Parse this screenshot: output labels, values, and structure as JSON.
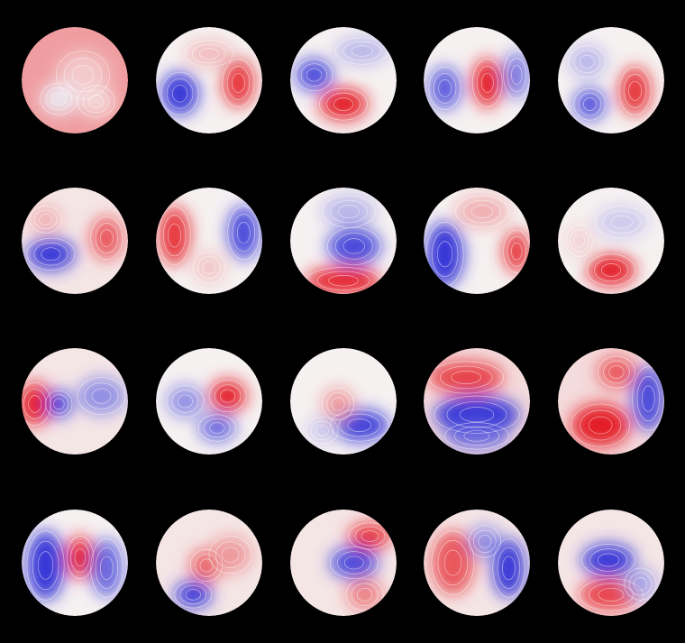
{
  "figure": {
    "background": "#000000",
    "colormap": {
      "negative": "#2a2ad6",
      "neutral": "#f6f1f1",
      "positive": "#e3141b",
      "contour_line": "#ffffff"
    },
    "maps": [
      {
        "blobs": [
          {
            "v": 0.18
          },
          {
            "v": -0.05
          },
          {
            "v": 0.12
          }
        ],
        "base": 0.38
      },
      {
        "blobs": [
          {
            "v": -0.95
          },
          {
            "v": 0.85
          },
          {
            "v": 0.25
          }
        ],
        "base": 0.0
      },
      {
        "blobs": [
          {
            "v": -0.85
          },
          {
            "v": 0.95
          },
          {
            "v": -0.3
          }
        ],
        "base": 0.0
      },
      {
        "blobs": [
          {
            "v": -0.75
          },
          {
            "v": 0.95
          },
          {
            "v": -0.6
          }
        ],
        "base": 0.0
      },
      {
        "blobs": [
          {
            "v": -0.8
          },
          {
            "v": 0.85
          },
          {
            "v": -0.3
          }
        ],
        "base": 0.0
      },
      {
        "blobs": [
          {
            "v": -0.95
          },
          {
            "v": 0.7
          },
          {
            "v": 0.3
          }
        ],
        "base": 0.05
      },
      {
        "blobs": [
          {
            "v": 0.85
          },
          {
            "v": -0.85
          },
          {
            "v": 0.2
          }
        ],
        "base": 0.0
      },
      {
        "blobs": [
          {
            "v": -0.85
          },
          {
            "v": 0.95
          },
          {
            "v": -0.3
          }
        ],
        "base": 0.0
      },
      {
        "blobs": [
          {
            "v": -0.95
          },
          {
            "v": 0.85
          },
          {
            "v": 0.3
          }
        ],
        "base": 0.0
      },
      {
        "blobs": [
          {
            "v": 0.95
          },
          {
            "v": -0.2
          },
          {
            "v": 0.15
          }
        ],
        "base": 0.0
      },
      {
        "blobs": [
          {
            "v": 0.95
          },
          {
            "v": -0.9
          },
          {
            "v": -0.5
          }
        ],
        "base": 0.05
      },
      {
        "blobs": [
          {
            "v": 0.95
          },
          {
            "v": -0.7
          },
          {
            "v": -0.5
          }
        ],
        "base": 0.0
      },
      {
        "blobs": [
          {
            "v": -0.9
          },
          {
            "v": 0.4
          },
          {
            "v": -0.2
          }
        ],
        "base": 0.0
      },
      {
        "blobs": [
          {
            "v": 0.8
          },
          {
            "v": -0.95
          },
          {
            "v": -0.7
          }
        ],
        "base": 0.1
      },
      {
        "blobs": [
          {
            "v": 0.95
          },
          {
            "v": -0.85
          },
          {
            "v": 0.7
          }
        ],
        "base": 0.1
      },
      {
        "blobs": [
          {
            "v": -0.95
          },
          {
            "v": 0.95
          },
          {
            "v": -0.7
          }
        ],
        "base": 0.0
      },
      {
        "blobs": [
          {
            "v": -0.95
          },
          {
            "v": 0.7
          },
          {
            "v": 0.4
          }
        ],
        "base": 0.05
      },
      {
        "blobs": [
          {
            "v": -0.85
          },
          {
            "v": 0.85
          },
          {
            "v": 0.5
          }
        ],
        "base": 0.05
      },
      {
        "blobs": [
          {
            "v": 0.7
          },
          {
            "v": -0.95
          },
          {
            "v": -0.5
          }
        ],
        "base": 0.05
      },
      {
        "blobs": [
          {
            "v": -0.95
          },
          {
            "v": 0.8
          },
          {
            "v": -0.4
          }
        ],
        "base": 0.05
      }
    ]
  }
}
